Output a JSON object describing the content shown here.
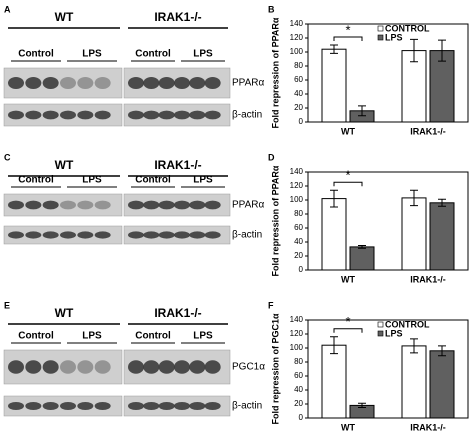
{
  "blots": [
    {
      "label": "A",
      "groups": [
        {
          "name": "WT",
          "conditions": [
            "Control",
            "LPS"
          ]
        },
        {
          "name": "IRAK1-/-",
          "conditions": [
            "Control",
            "LPS"
          ]
        }
      ],
      "rows": [
        "PPARα",
        "β-actin"
      ]
    },
    {
      "label": "C",
      "groups": [
        {
          "name": "WT",
          "conditions": [
            "Control",
            "LPS"
          ]
        },
        {
          "name": "IRAK1-/-",
          "conditions": [
            "Control",
            "LPS"
          ]
        }
      ],
      "rows": [
        "PPARα",
        "β-actin"
      ]
    },
    {
      "label": "E",
      "groups": [
        {
          "name": "WT",
          "conditions": [
            "Control",
            "LPS"
          ]
        },
        {
          "name": "IRAK1-/-",
          "conditions": [
            "Control",
            "LPS"
          ]
        }
      ],
      "rows": [
        "PGC1α",
        "β-actin"
      ]
    }
  ],
  "chart_data": [
    {
      "type": "bar",
      "panel_label": "B",
      "y_label": "Fold repression of PPARα",
      "categories": [
        "WT",
        "IRAK1-/-"
      ],
      "series": [
        {
          "name": "CONTROL",
          "color": "#ffffff",
          "values": [
            104,
            102
          ],
          "errors": [
            6,
            16
          ]
        },
        {
          "name": "LPS",
          "color": "#606060",
          "values": [
            16,
            102
          ],
          "errors": [
            7,
            15
          ]
        }
      ],
      "ylim": [
        0,
        140
      ],
      "yticks": [
        0,
        20,
        40,
        60,
        80,
        100,
        120,
        140
      ],
      "legend": "upper right",
      "annotations": [
        "*"
      ]
    },
    {
      "type": "bar",
      "panel_label": "D",
      "y_label": "Fold repression of PPARα",
      "categories": [
        "WT",
        "IRAK1-/-"
      ],
      "series": [
        {
          "color": "#ffffff",
          "values": [
            102,
            103
          ],
          "errors": [
            12,
            11
          ]
        },
        {
          "color": "#606060",
          "values": [
            33,
            96
          ],
          "errors": [
            2,
            5
          ]
        }
      ],
      "ylim": [
        0,
        140
      ],
      "yticks": [
        0,
        20,
        40,
        60,
        80,
        100,
        120,
        140
      ],
      "annotations": [
        "*"
      ]
    },
    {
      "type": "bar",
      "panel_label": "F",
      "y_label": "Fold repression of PGC1α",
      "categories": [
        "WT",
        "IRAK1-/-"
      ],
      "series": [
        {
          "name": "CONTROL",
          "color": "#ffffff",
          "values": [
            104,
            103
          ],
          "errors": [
            12,
            10
          ]
        },
        {
          "name": "LPS",
          "color": "#606060",
          "values": [
            18,
            96
          ],
          "errors": [
            3,
            7
          ]
        }
      ],
      "ylim": [
        0,
        140
      ],
      "yticks": [
        0,
        20,
        40,
        60,
        80,
        100,
        120,
        140
      ],
      "legend": "upper right",
      "annotations": [
        "*"
      ]
    }
  ]
}
